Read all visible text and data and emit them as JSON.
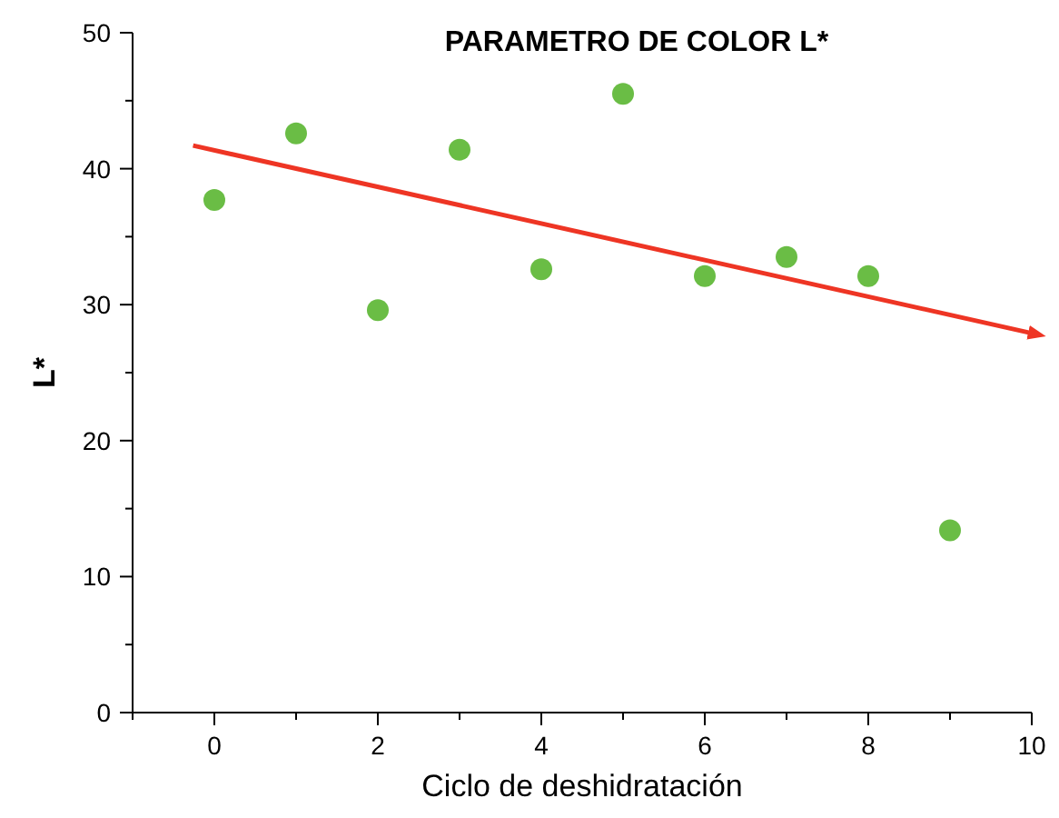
{
  "chart_data": {
    "type": "scatter",
    "title": "PARAMETRO DE COLOR L*",
    "xlabel": "Ciclo de deshidratación",
    "ylabel": "L*",
    "xlim": [
      -1,
      10
    ],
    "ylim": [
      0,
      50
    ],
    "xticks": [
      {
        "value": -1,
        "label": null
      },
      0,
      {
        "value": 1,
        "label": null
      },
      2,
      {
        "value": 3,
        "label": null
      },
      4,
      {
        "value": 5,
        "label": null
      },
      6,
      {
        "value": 7,
        "label": null
      },
      8,
      {
        "value": 9,
        "label": null
      },
      10
    ],
    "yticks": [
      0,
      {
        "value": 5,
        "label": null
      },
      10,
      {
        "value": 15,
        "label": null
      },
      20,
      {
        "value": 25,
        "label": null
      },
      30,
      {
        "value": 35,
        "label": null
      },
      40,
      {
        "value": 45,
        "label": null
      },
      50
    ],
    "grid": false,
    "series": [
      {
        "marker": "circle",
        "color": "#6abd45",
        "x": [
          0,
          1,
          2,
          3,
          4,
          5,
          6,
          7,
          8,
          9
        ],
        "values": [
          37.7,
          42.6,
          29.6,
          41.4,
          32.6,
          45.5,
          32.1,
          33.5,
          32.1,
          13.4
        ]
      },
      {
        "type": "line",
        "color": "#ee3524",
        "x": [
          -0.26,
          10
        ],
        "values": [
          41.7,
          27.9
        ]
      }
    ]
  }
}
